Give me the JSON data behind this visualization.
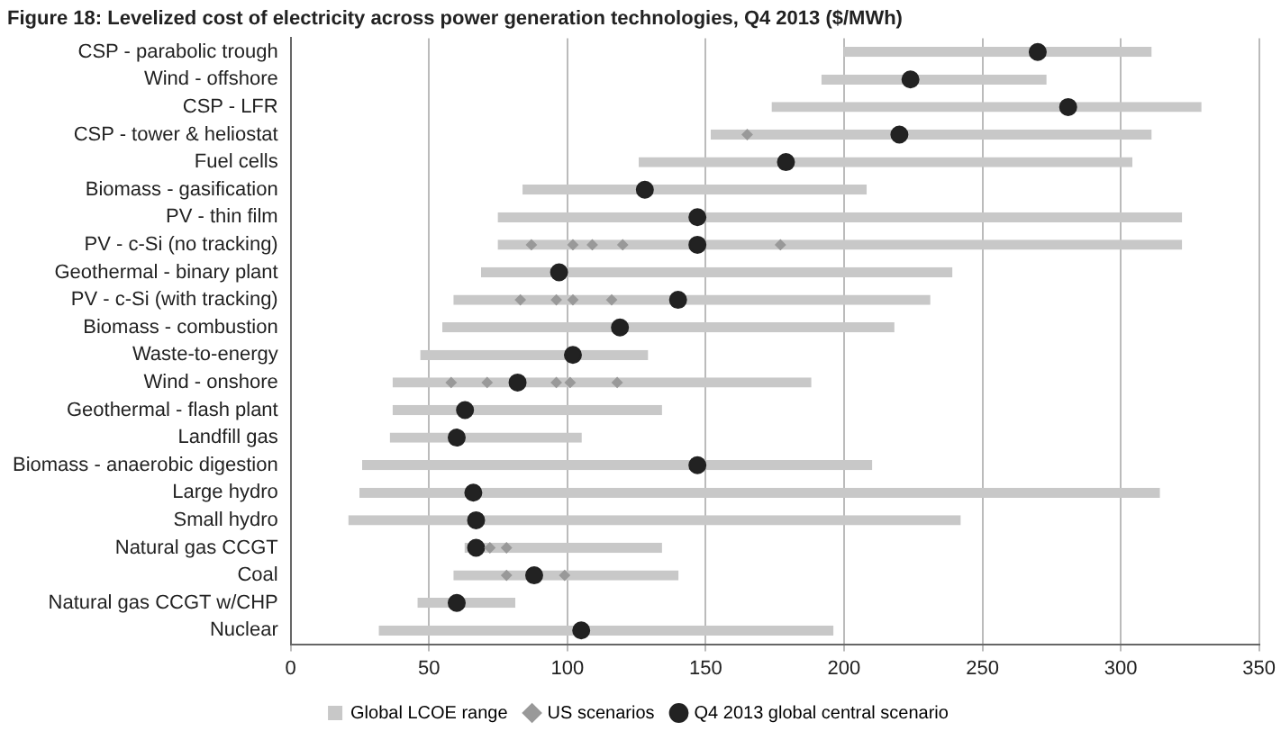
{
  "chart_data": {
    "type": "bar",
    "orientation": "horizontal",
    "title": "Figure 18: Levelized cost of electricity across power generation technologies, Q4 2013 ($/MWh)",
    "categories": [
      "CSP - parabolic trough",
      "Wind - offshore",
      "CSP - LFR",
      "CSP - tower & heliostat",
      "Fuel cells",
      "Biomass - gasification",
      "PV - thin film",
      "PV - c-Si (no tracking)",
      "Geothermal - binary plant",
      "PV - c-Si (with tracking)",
      "Biomass - combustion",
      "Waste-to-energy",
      "Wind - onshore",
      "Geothermal - flash plant",
      "Landfill gas",
      "Biomass - anaerobic digestion",
      "Large hydro",
      "Small hydro",
      "Natural gas CCGT",
      "Coal",
      "Natural gas CCGT w/CHP",
      "Nuclear"
    ],
    "series": [
      {
        "name": "Global LCOE range",
        "color": "#c8c8c8",
        "base": [
          200,
          192,
          174,
          152,
          126,
          84,
          75,
          75,
          69,
          59,
          55,
          47,
          37,
          37,
          36,
          26,
          25,
          21,
          63,
          59,
          46,
          32
        ],
        "values": [
          111,
          81,
          155,
          159,
          178,
          124,
          247,
          247,
          170,
          172,
          163,
          82,
          151,
          97,
          69,
          184,
          289,
          221,
          71,
          81,
          35,
          164
        ]
      },
      {
        "name": "US scenarios",
        "type": "scatter",
        "marker": "diamond",
        "color": "#999999",
        "x": [
          "CSP - tower & heliostat",
          "PV - c-Si (no tracking)",
          "PV - c-Si (no tracking)",
          "PV - c-Si (no tracking)",
          "PV - c-Si (no tracking)",
          "PV - c-Si (no tracking)",
          "PV - c-Si (with tracking)",
          "PV - c-Si (with tracking)",
          "PV - c-Si (with tracking)",
          "PV - c-Si (with tracking)",
          "Wind - onshore",
          "Wind - onshore",
          "Wind - onshore",
          "Wind - onshore",
          "Wind - onshore",
          "Natural gas CCGT",
          "Natural gas CCGT",
          "Coal",
          "Coal"
        ],
        "values": [
          165,
          87,
          102,
          109,
          120,
          177,
          83,
          96,
          102,
          116,
          58,
          71,
          96,
          101,
          118,
          72,
          78,
          78,
          99
        ]
      },
      {
        "name": "Q4 2013 global central scenario",
        "type": "scatter",
        "marker": "circle",
        "color": "#222222",
        "values": [
          270,
          224,
          281,
          220,
          179,
          128,
          147,
          147,
          97,
          140,
          119,
          102,
          82,
          63,
          60,
          147,
          66,
          67,
          67,
          88,
          60,
          105
        ]
      }
    ],
    "xlim": [
      0,
      350
    ],
    "xticks": [
      0,
      50,
      100,
      150,
      200,
      250,
      300,
      350
    ],
    "grid": "x",
    "legend": "bottom"
  }
}
